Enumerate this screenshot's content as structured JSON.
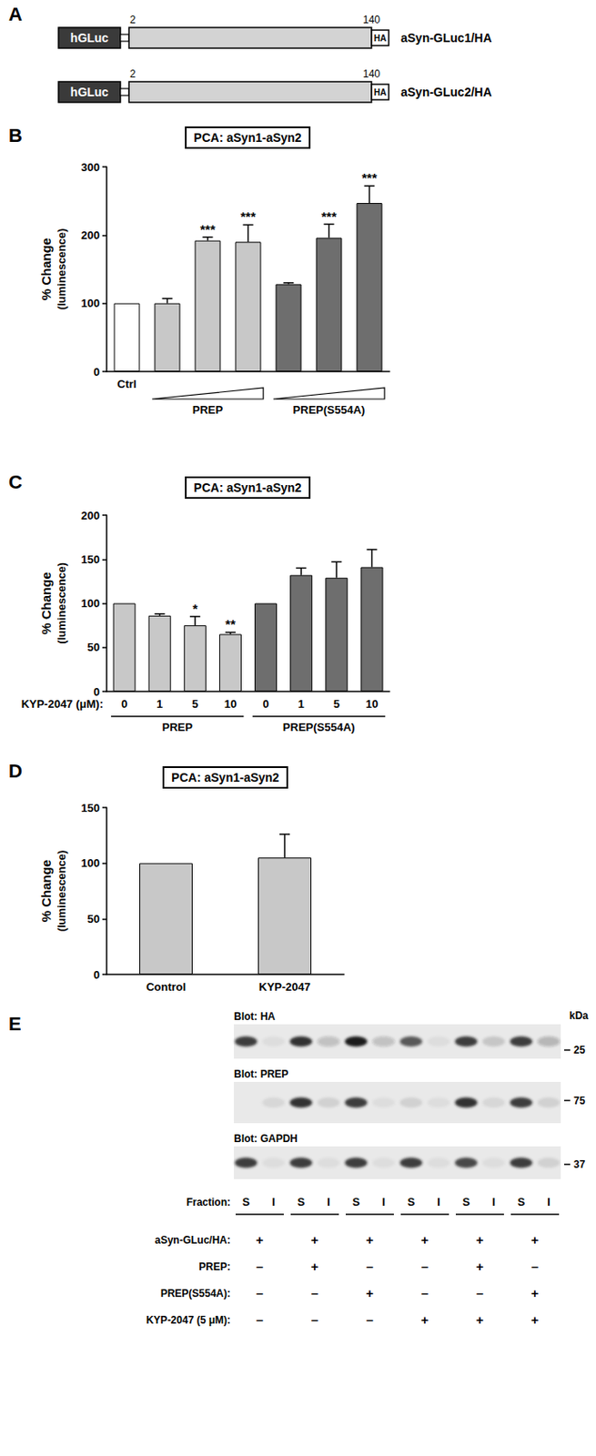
{
  "panel_a": {
    "letter": "A",
    "constructs": [
      {
        "tag": "hGLuc",
        "start": 2,
        "end": 140,
        "epitope": "HA",
        "label": "aSyn-GLuc1/HA"
      },
      {
        "tag": "hGLuc",
        "start": 2,
        "end": 140,
        "epitope": "HA",
        "label": "aSyn-GLuc2/HA"
      }
    ]
  },
  "chart_data": [
    {
      "panel_label": "B",
      "type": "bar",
      "title": "PCA: aSyn1-aSyn2",
      "y_label": [
        "% Change",
        "(luminescence)"
      ],
      "categories": [
        "Ctrl",
        null,
        null,
        null,
        null,
        null,
        null
      ],
      "values": [
        100,
        100,
        192,
        190,
        128,
        196,
        247
      ],
      "errors": [
        0,
        7,
        5,
        25,
        2,
        20,
        25
      ],
      "significance": [
        null,
        null,
        "***",
        "***",
        null,
        "***",
        "***"
      ],
      "colors": [
        "#ffffff",
        "#c8c8c8",
        "#c8c8c8",
        "#c8c8c8",
        "#6e6e6e",
        "#6e6e6e",
        "#6e6e6e"
      ],
      "groups": [
        {
          "label": "PREP",
          "start": 1,
          "end": 3
        },
        {
          "label": "PREP(S554A)",
          "start": 4,
          "end": 6
        }
      ],
      "ylim": [
        0,
        300
      ],
      "yticks": [
        0,
        100,
        200,
        300
      ]
    },
    {
      "panel_label": "C",
      "type": "bar",
      "title": "PCA: aSyn1-aSyn2",
      "y_label": [
        "% Change",
        "(luminescence)"
      ],
      "x_label": "KYP-2047 (μM):",
      "categories": [
        "0",
        "1",
        "5",
        "10",
        "0",
        "1",
        "5",
        "10"
      ],
      "values": [
        100,
        86,
        75,
        65,
        100,
        132,
        129,
        141
      ],
      "errors": [
        0,
        2,
        10,
        2,
        0,
        8,
        18,
        20
      ],
      "significance": [
        null,
        null,
        "*",
        "**",
        null,
        null,
        null,
        null
      ],
      "colors": [
        "#c8c8c8",
        "#c8c8c8",
        "#c8c8c8",
        "#c8c8c8",
        "#6e6e6e",
        "#6e6e6e",
        "#6e6e6e",
        "#6e6e6e"
      ],
      "groups": [
        {
          "label": "PREP",
          "start": 0,
          "end": 3
        },
        {
          "label": "PREP(S554A)",
          "start": 4,
          "end": 7
        }
      ],
      "ylim": [
        0,
        200
      ],
      "yticks": [
        0,
        50,
        100,
        150,
        200
      ]
    },
    {
      "panel_label": "D",
      "type": "bar",
      "title": "PCA: aSyn1-aSyn2",
      "y_label": [
        "% Change",
        "(luminescence)"
      ],
      "categories": [
        "Control",
        "KYP-2047"
      ],
      "values": [
        100,
        105
      ],
      "errors": [
        0,
        21
      ],
      "color": "#c8c8c8",
      "ylim": [
        0,
        150
      ],
      "yticks": [
        0,
        50,
        100,
        150
      ]
    }
  ],
  "panel_e": {
    "letter": "E",
    "unit": "kDa",
    "blots": [
      {
        "label": "Blot: HA",
        "marker": 25,
        "bands": [
          0.85,
          0.05,
          0.9,
          0.2,
          1.0,
          0.2,
          0.7,
          0.05,
          0.85,
          0.15,
          0.85,
          0.25
        ]
      },
      {
        "label": "Blot: PREP",
        "marker": 75,
        "bands": [
          0,
          0.08,
          0.9,
          0.1,
          0.85,
          0.05,
          0.1,
          0.05,
          0.9,
          0.08,
          0.85,
          0.1
        ]
      },
      {
        "label": "Blot: GAPDH",
        "marker": 37,
        "bands": [
          0.85,
          0.05,
          0.85,
          0.05,
          0.85,
          0.05,
          0.85,
          0.05,
          0.8,
          0.05,
          0.85,
          0.1
        ]
      }
    ],
    "fraction_label": "Fraction:",
    "fractions": [
      "S",
      "I",
      "S",
      "I",
      "S",
      "I",
      "S",
      "I",
      "S",
      "I",
      "S",
      "I"
    ],
    "conditions": [
      {
        "label": "aSyn-GLuc/HA:",
        "marks": [
          "+",
          "+",
          "+",
          "+",
          "+",
          "+"
        ]
      },
      {
        "label": "PREP:",
        "marks": [
          "–",
          "+",
          "–",
          "–",
          "+",
          "–"
        ]
      },
      {
        "label": "PREP(S554A):",
        "marks": [
          "–",
          "–",
          "+",
          "–",
          "–",
          "+"
        ]
      },
      {
        "label": "KYP-2047 (5 μM):",
        "marks": [
          "–",
          "–",
          "–",
          "+",
          "+",
          "+"
        ]
      }
    ]
  }
}
